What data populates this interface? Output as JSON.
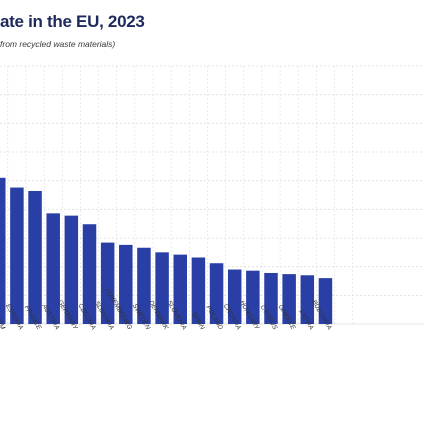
{
  "header": {
    "title": "ate in the EU, 2023",
    "subtitle": "from recycled waste materials)"
  },
  "chart_data": {
    "type": "bar",
    "title": "ate in the EU, 2023",
    "subtitle": "from recycled waste materials)",
    "xlabel": "",
    "ylabel": "",
    "grid": true,
    "legend": "none",
    "categories": [
      "BELGIUM",
      "ESTONIA",
      "FRANCE",
      "AUSTRIA",
      "GERMANY",
      "CZECHIA",
      "SLOVAKIA",
      "LUXEMBOURG",
      "SWEDEN",
      "DENMARK",
      "SLOVENIA",
      "SPAIN",
      "POLAND",
      "CROATIA",
      "HUNGARY",
      "CYPRUS",
      "GREECE",
      "LATVIA",
      "BULGARIA"
    ],
    "values": [
      25.5,
      23.8,
      23.2,
      19.3,
      18.9,
      17.4,
      14.2,
      13.8,
      13.3,
      12.5,
      12.1,
      11.6,
      10.6,
      9.5,
      9.3,
      8.9,
      8.7,
      8.5,
      8.0
    ],
    "ylim": [
      0,
      45
    ],
    "colors": {
      "bar": "#2a3fa6",
      "grid": "#dedede"
    }
  }
}
